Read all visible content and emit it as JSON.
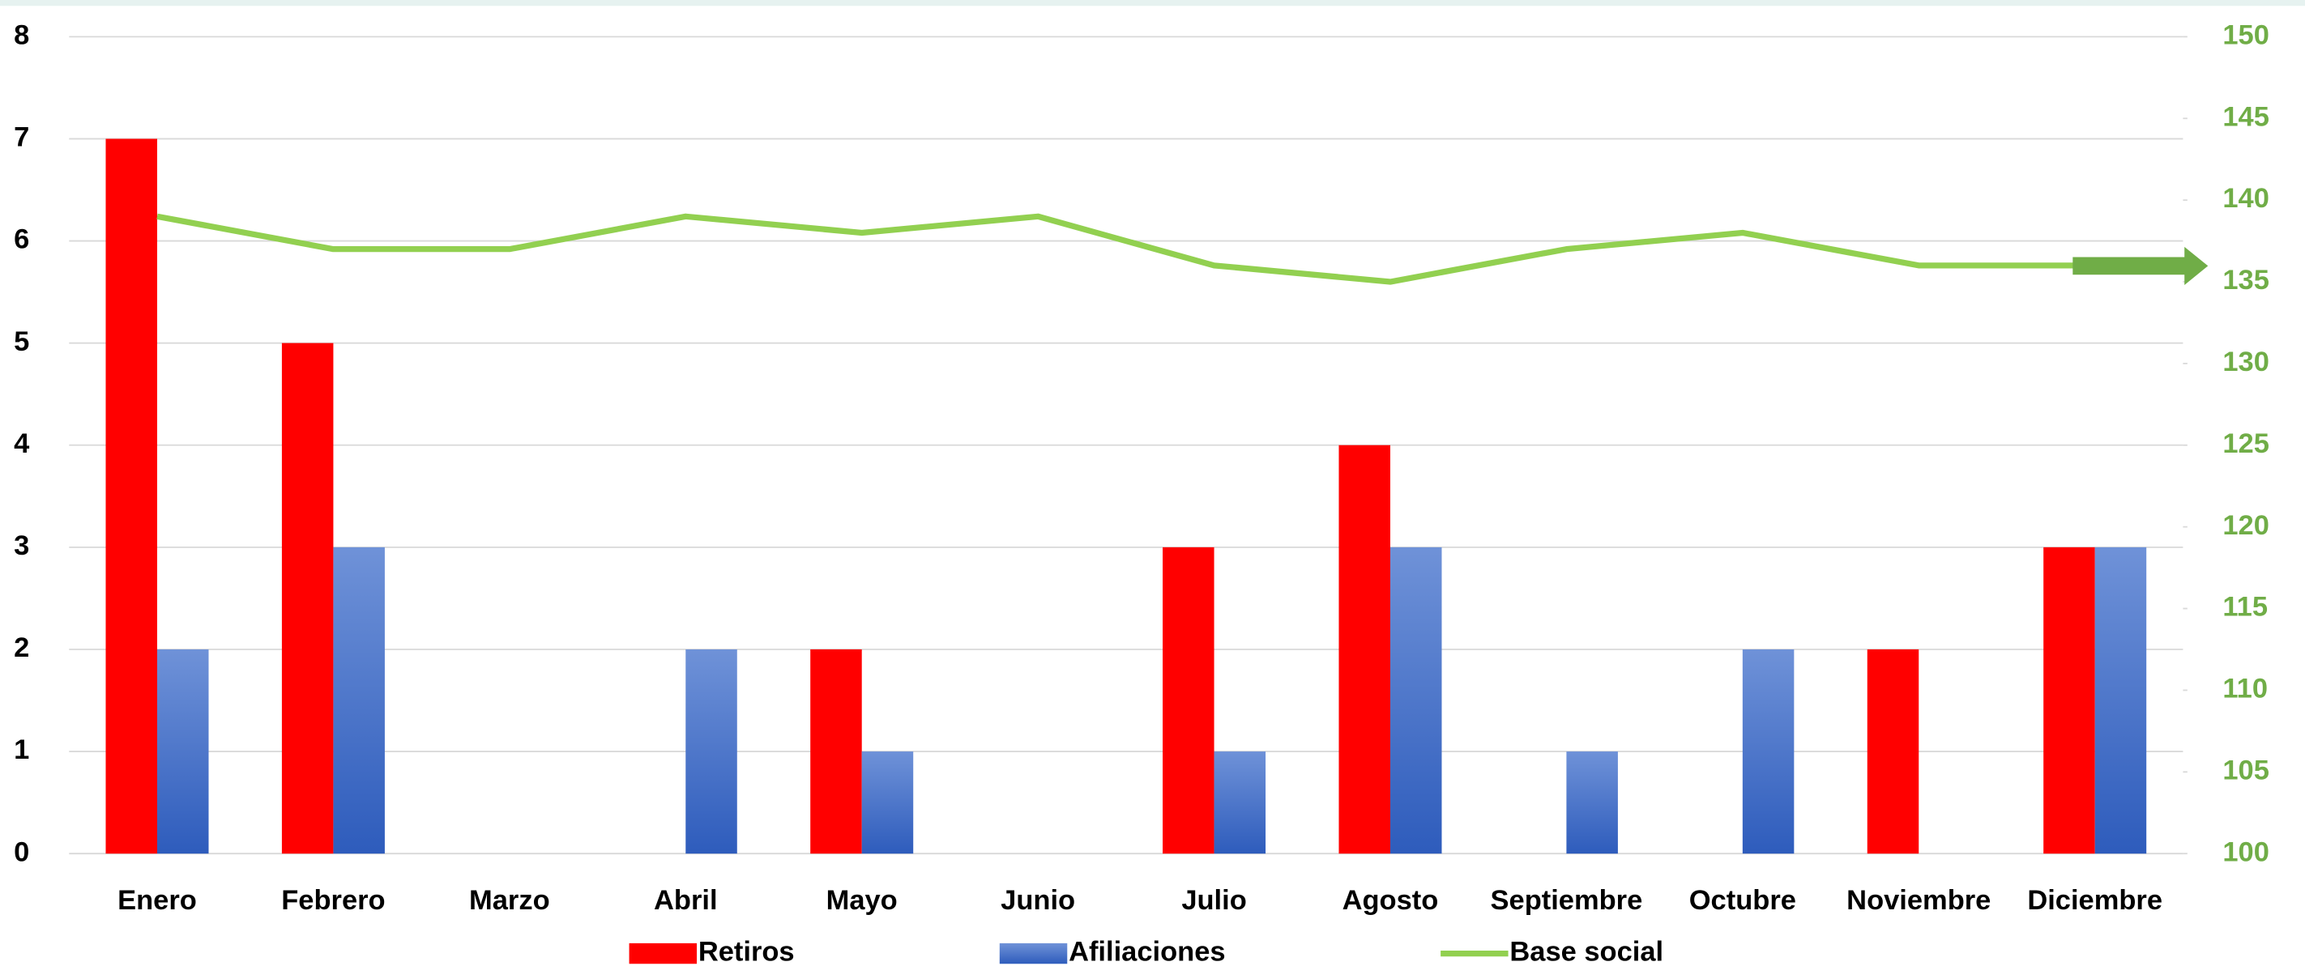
{
  "chart_data": {
    "type": "bar-line",
    "categories": [
      "Enero",
      "Febrero",
      "Marzo",
      "Abril",
      "Mayo",
      "Junio",
      "Julio",
      "Agosto",
      "Septiembre",
      "Octubre",
      "Noviembre",
      "Diciembre"
    ],
    "series": [
      {
        "name": "Retiros",
        "type": "bar",
        "color": "#ff0000",
        "values": [
          7,
          5,
          0,
          0,
          2,
          0,
          3,
          4,
          0,
          0,
          2,
          3
        ]
      },
      {
        "name": "Afiliaciones",
        "type": "bar",
        "color": "#4472c4",
        "values": [
          2,
          3,
          0,
          2,
          1,
          0,
          1,
          3,
          1,
          2,
          0,
          3
        ]
      },
      {
        "name": "Base social",
        "type": "line",
        "axis": "y2",
        "color": "#92d050",
        "values": [
          139,
          137,
          137,
          139,
          138,
          139,
          136,
          135,
          137,
          138,
          136,
          136
        ]
      }
    ],
    "ylim": [
      0,
      8
    ],
    "yticks": [
      0,
      1,
      2,
      3,
      4,
      5,
      6,
      7,
      8
    ],
    "y2lim": [
      100,
      150
    ],
    "y2ticks": [
      100,
      105,
      110,
      115,
      120,
      125,
      130,
      135,
      140,
      145,
      150
    ],
    "grid": true,
    "legend": "bottom"
  }
}
